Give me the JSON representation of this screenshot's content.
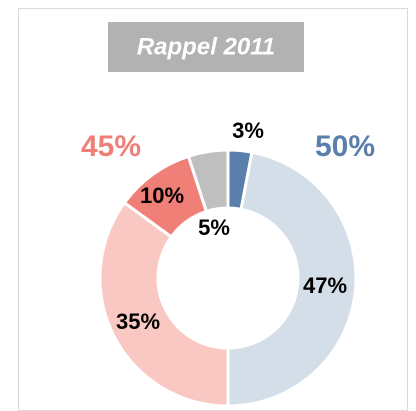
{
  "chart_data": {
    "type": "donut",
    "title": "Rappel 2011",
    "categories": [
      null,
      null,
      null,
      null,
      null
    ],
    "values": [
      3,
      47,
      35,
      10,
      5
    ],
    "value_labels": [
      "3%",
      "47%",
      "35%",
      "10%",
      "5%"
    ],
    "colors": [
      "#5b7fab",
      "#d4dee9",
      "#f9c8c3",
      "#f07f77",
      "#bfbfbf"
    ],
    "annotations": [
      {
        "text": "45%",
        "color": "#f07f77"
      },
      {
        "text": "50%",
        "color": "#5b7fab"
      }
    ]
  }
}
